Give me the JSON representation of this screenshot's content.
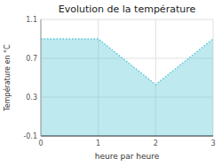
{
  "chart_data": {
    "type": "area",
    "title": "Evolution de la température",
    "xlabel": "heure par heure",
    "ylabel": "Température en °C",
    "x": [
      0,
      1,
      2,
      3
    ],
    "values": [
      0.9,
      0.9,
      0.43,
      0.9
    ],
    "xlim": [
      0,
      3
    ],
    "ylim": [
      -0.1,
      1.1
    ],
    "xticks": [
      0,
      1,
      2,
      3
    ],
    "yticks": [
      -0.1,
      0.3,
      0.7,
      1.1
    ],
    "color": "#5bc8d8",
    "line_style": "dotted",
    "grid": true
  }
}
